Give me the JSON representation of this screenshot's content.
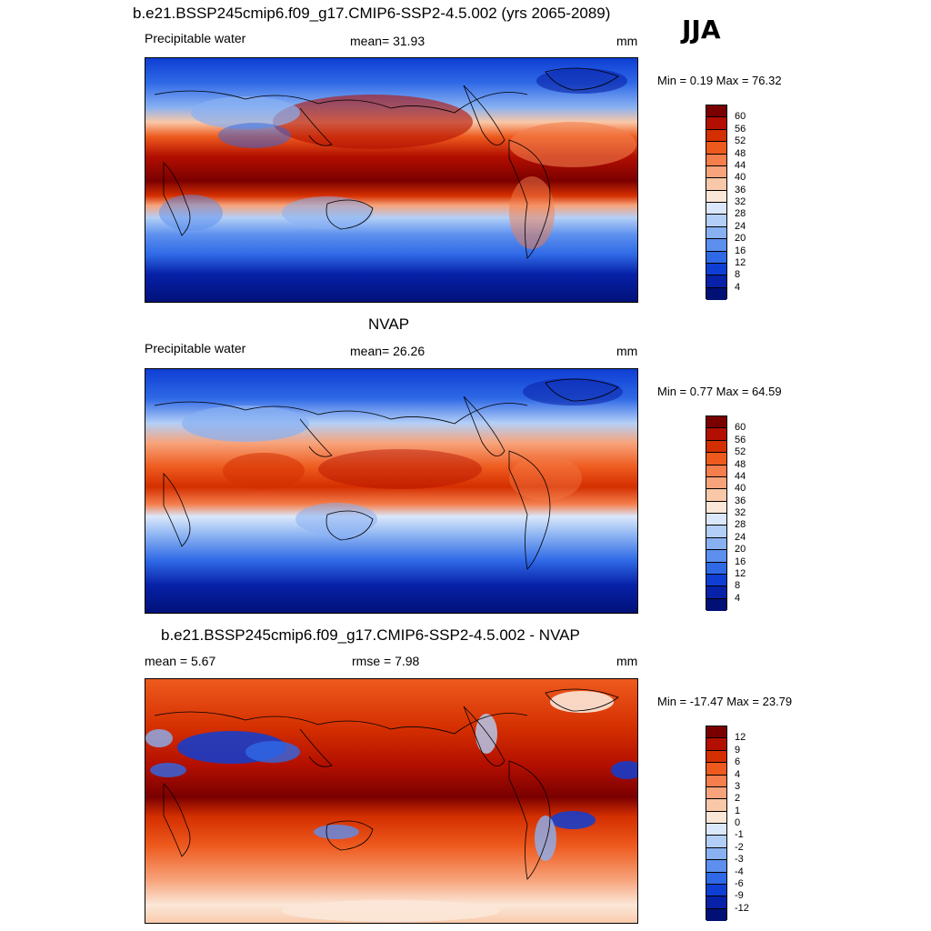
{
  "season": "JJA",
  "panels": [
    {
      "title": "b.e21.BSSP245cmip6.f09_g17.CMIP6-SSP2-4.5.002 (yrs 2065-2089)",
      "left_label": "Precipitable water",
      "center_label": "mean=  31.93",
      "units": "mm",
      "minmax": "Min =   0.19 Max =  76.32",
      "colorbar": {
        "labels": [
          "60",
          "56",
          "52",
          "48",
          "44",
          "40",
          "36",
          "32",
          "28",
          "24",
          "20",
          "16",
          "12",
          "8",
          "4"
        ],
        "colors": [
          "#7a0000",
          "#b30f00",
          "#d42f00",
          "#ee5a1e",
          "#f47e4c",
          "#f7a47c",
          "#f9c8a8",
          "#fbe7d8",
          "#dbe8fb",
          "#b3cff7",
          "#89b1f2",
          "#5c8fee",
          "#2f69e6",
          "#0e3ed4",
          "#0721a8",
          "#001075"
        ]
      }
    },
    {
      "title": "NVAP",
      "left_label": "Precipitable water",
      "center_label": "mean=  26.26",
      "units": "mm",
      "minmax": "Min =   0.77 Max =  64.59",
      "colorbar": {
        "labels": [
          "60",
          "56",
          "52",
          "48",
          "44",
          "40",
          "36",
          "32",
          "28",
          "24",
          "20",
          "16",
          "12",
          "8",
          "4"
        ],
        "colors": [
          "#7a0000",
          "#b30f00",
          "#d42f00",
          "#ee5a1e",
          "#f47e4c",
          "#f7a47c",
          "#f9c8a8",
          "#fbe7d8",
          "#dbe8fb",
          "#b3cff7",
          "#89b1f2",
          "#5c8fee",
          "#2f69e6",
          "#0e3ed4",
          "#0721a8",
          "#001075"
        ]
      }
    },
    {
      "title": "b.e21.BSSP245cmip6.f09_g17.CMIP6-SSP2-4.5.002 - NVAP",
      "left_label": "mean =   5.67",
      "center_label": "rmse =   7.98",
      "units": "mm",
      "minmax": "Min = -17.47 Max =  23.79",
      "colorbar": {
        "labels": [
          "12",
          "9",
          "6",
          "4",
          "3",
          "2",
          "1",
          "0",
          "-1",
          "-2",
          "-3",
          "-4",
          "-6",
          "-9",
          "-12"
        ],
        "colors": [
          "#7a0000",
          "#b30f00",
          "#d42f00",
          "#ee5a1e",
          "#f47e4c",
          "#f7a47c",
          "#f9c8a8",
          "#fbe7d8",
          "#dbe8fb",
          "#b3cff7",
          "#89b1f2",
          "#5c8fee",
          "#2f69e6",
          "#0e3ed4",
          "#0721a8",
          "#001075"
        ]
      }
    }
  ]
}
